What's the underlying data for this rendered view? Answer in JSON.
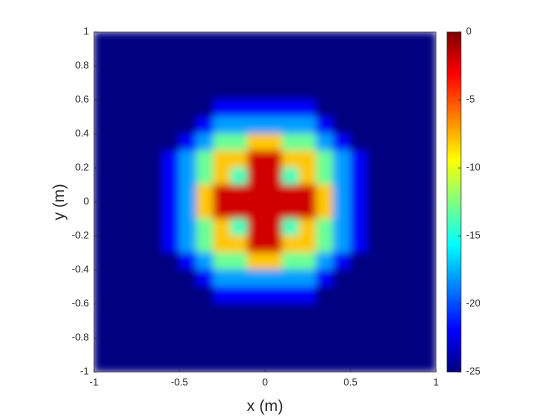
{
  "chart_data": {
    "type": "heatmap",
    "xlabel": "x (m)",
    "ylabel": "y (m)",
    "xlim": [
      -1,
      1
    ],
    "ylim": [
      -1,
      1
    ],
    "xticks": [
      -1,
      -0.5,
      0,
      0.5,
      1
    ],
    "yticks": [
      -1,
      -0.8,
      -0.6,
      -0.4,
      -0.2,
      0,
      0.2,
      0.4,
      0.6,
      0.8,
      1
    ],
    "colormap": "jet",
    "clim": [
      -25,
      0
    ],
    "cticks": [
      0,
      -5,
      -10,
      -15,
      -20,
      -25
    ],
    "x": [
      -0.95,
      -0.85,
      -0.75,
      -0.65,
      -0.55,
      -0.45,
      -0.35,
      -0.25,
      -0.15,
      -0.05,
      0.05,
      0.15,
      0.25,
      0.35,
      0.45,
      0.55,
      0.65,
      0.75,
      0.85,
      0.95
    ],
    "y": [
      0.95,
      0.85,
      0.75,
      0.65,
      0.55,
      0.45,
      0.35,
      0.25,
      0.15,
      0.05,
      -0.05,
      -0.15,
      -0.25,
      -0.35,
      -0.45,
      -0.55,
      -0.65,
      -0.75,
      -0.85,
      -0.95
    ],
    "z": [
      [
        -25,
        -25,
        -25,
        -25,
        -25,
        -25,
        -25,
        -25,
        -25,
        -25,
        -25,
        -25,
        -25,
        -25,
        -25,
        -25,
        -25,
        -25,
        -25,
        -25
      ],
      [
        -25,
        -25,
        -25,
        -25,
        -25,
        -25,
        -25,
        -25,
        -25,
        -25,
        -25,
        -25,
        -25,
        -25,
        -25,
        -25,
        -25,
        -25,
        -25,
        -25
      ],
      [
        -25,
        -25,
        -25,
        -25,
        -25,
        -25,
        -25,
        -25,
        -25,
        -25,
        -25,
        -25,
        -25,
        -25,
        -25,
        -25,
        -25,
        -25,
        -25,
        -25
      ],
      [
        -25,
        -25,
        -25,
        -25,
        -25,
        -25,
        -25,
        -25,
        -25,
        -25,
        -25,
        -25,
        -25,
        -25,
        -25,
        -25,
        -25,
        -25,
        -25,
        -25
      ],
      [
        -25,
        -25,
        -25,
        -25,
        -25,
        -25,
        -25,
        -22,
        -22,
        -22,
        -22,
        -22,
        -22,
        -25,
        -25,
        -25,
        -25,
        -25,
        -25,
        -25
      ],
      [
        -25,
        -25,
        -25,
        -25,
        -25,
        -25,
        -22,
        -18,
        -18,
        -18,
        -18,
        -18,
        -18,
        -22,
        -25,
        -25,
        -25,
        -25,
        -25,
        -25
      ],
      [
        -25,
        -25,
        -25,
        -25,
        -25,
        -22,
        -18,
        -13,
        -13,
        -8,
        -8,
        -13,
        -13,
        -18,
        -22,
        -25,
        -25,
        -25,
        -25,
        -25
      ],
      [
        -25,
        -25,
        -25,
        -25,
        -22,
        -18,
        -13,
        -8,
        -8,
        -2,
        -2,
        -8,
        -8,
        -13,
        -18,
        -22,
        -25,
        -25,
        -25,
        -25
      ],
      [
        -25,
        -25,
        -25,
        -25,
        -22,
        -18,
        -13,
        -8,
        -14,
        -2,
        -2,
        -14,
        -8,
        -13,
        -18,
        -22,
        -25,
        -25,
        -25,
        -25
      ],
      [
        -25,
        -25,
        -25,
        -25,
        -22,
        -18,
        -8,
        -2,
        -2,
        -2,
        -2,
        -2,
        -2,
        -8,
        -18,
        -22,
        -25,
        -25,
        -25,
        -25
      ],
      [
        -25,
        -25,
        -25,
        -25,
        -22,
        -18,
        -8,
        -2,
        -2,
        -2,
        -2,
        -2,
        -2,
        -8,
        -18,
        -22,
        -25,
        -25,
        -25,
        -25
      ],
      [
        -25,
        -25,
        -25,
        -25,
        -22,
        -18,
        -13,
        -8,
        -14,
        -2,
        -2,
        -14,
        -8,
        -13,
        -18,
        -22,
        -25,
        -25,
        -25,
        -25
      ],
      [
        -25,
        -25,
        -25,
        -25,
        -22,
        -18,
        -13,
        -8,
        -8,
        -2,
        -2,
        -8,
        -8,
        -13,
        -18,
        -22,
        -25,
        -25,
        -25,
        -25
      ],
      [
        -25,
        -25,
        -25,
        -25,
        -25,
        -22,
        -18,
        -13,
        -13,
        -8,
        -8,
        -13,
        -13,
        -18,
        -22,
        -25,
        -25,
        -25,
        -25,
        -25
      ],
      [
        -25,
        -25,
        -25,
        -25,
        -25,
        -25,
        -22,
        -18,
        -18,
        -18,
        -18,
        -18,
        -18,
        -22,
        -25,
        -25,
        -25,
        -25,
        -25,
        -25
      ],
      [
        -25,
        -25,
        -25,
        -25,
        -25,
        -25,
        -25,
        -22,
        -22,
        -22,
        -22,
        -22,
        -22,
        -25,
        -25,
        -25,
        -25,
        -25,
        -25,
        -25
      ],
      [
        -25,
        -25,
        -25,
        -25,
        -25,
        -25,
        -25,
        -25,
        -25,
        -25,
        -25,
        -25,
        -25,
        -25,
        -25,
        -25,
        -25,
        -25,
        -25,
        -25
      ],
      [
        -25,
        -25,
        -25,
        -25,
        -25,
        -25,
        -25,
        -25,
        -25,
        -25,
        -25,
        -25,
        -25,
        -25,
        -25,
        -25,
        -25,
        -25,
        -25,
        -25
      ],
      [
        -25,
        -25,
        -25,
        -25,
        -25,
        -25,
        -25,
        -25,
        -25,
        -25,
        -25,
        -25,
        -25,
        -25,
        -25,
        -25,
        -25,
        -25,
        -25,
        -25
      ],
      [
        -25,
        -25,
        -25,
        -25,
        -25,
        -25,
        -25,
        -25,
        -25,
        -25,
        -25,
        -25,
        -25,
        -25,
        -25,
        -25,
        -25,
        -25,
        -25,
        -25
      ]
    ]
  }
}
